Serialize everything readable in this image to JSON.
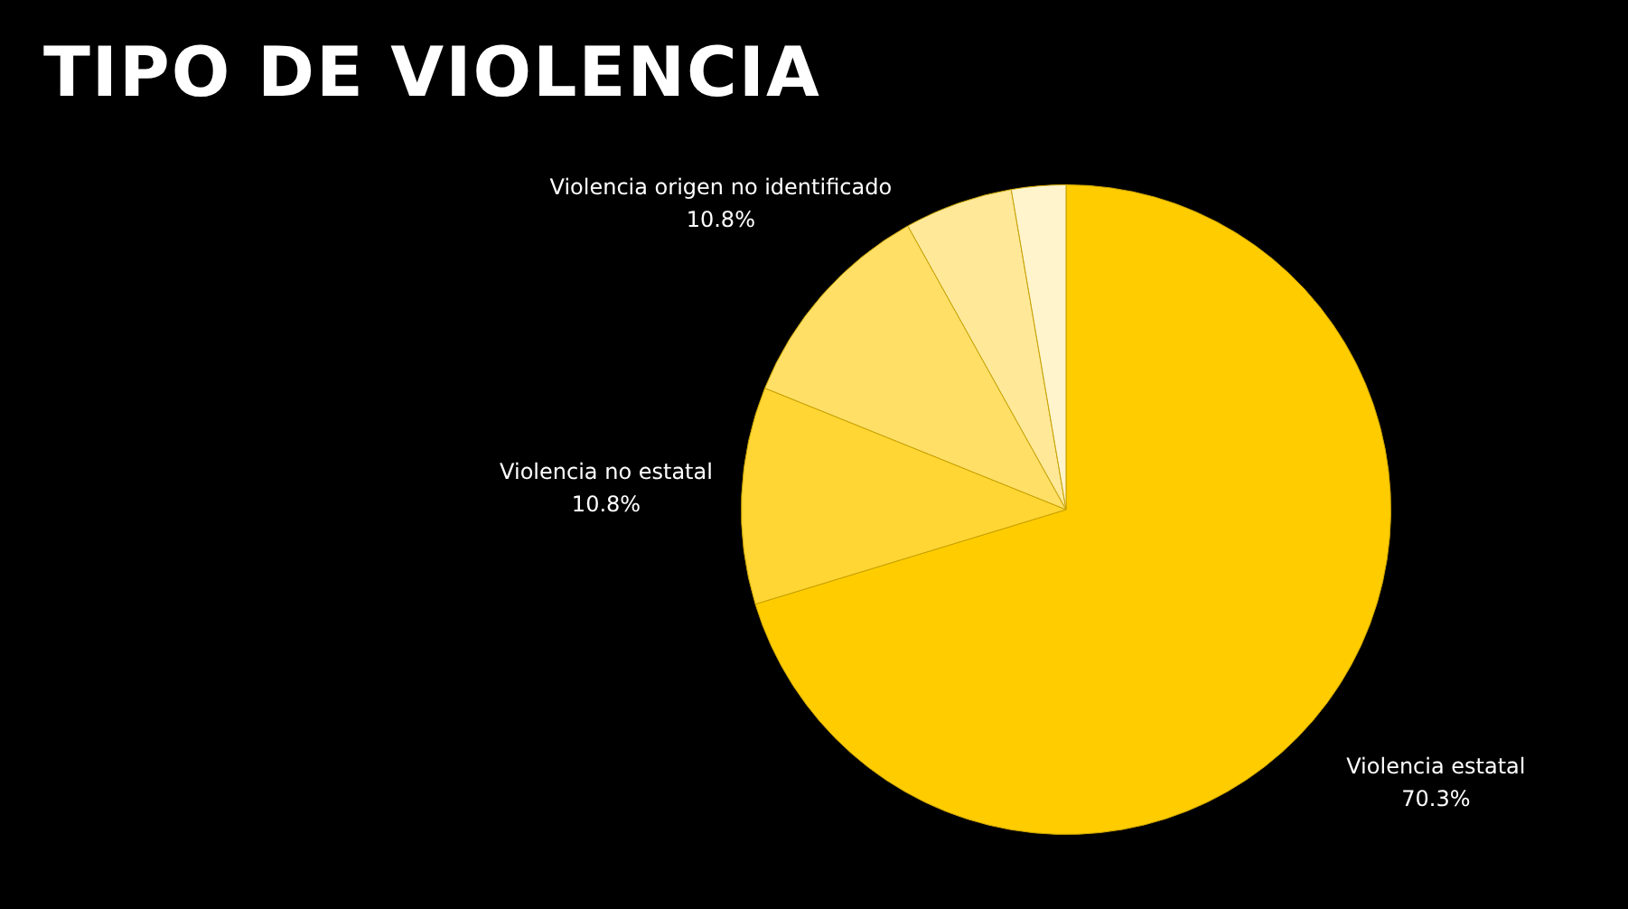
{
  "chart_data": {
    "type": "pie",
    "title": "TIPO DE VIOLENCIA",
    "categories": [
      "Violencia estatal",
      "Violencia no estatal",
      "Violencia origen no identificado",
      null,
      null
    ],
    "values": [
      70.3,
      10.8,
      10.8,
      5.4,
      2.7
    ],
    "colors": [
      "#ffcc00",
      "#ffd633",
      "#ffdf66",
      "#ffe999",
      "#fff4cc"
    ],
    "value_labels": [
      "70.3%",
      "10.8%",
      "10.8%",
      null,
      null
    ],
    "legend": false
  }
}
